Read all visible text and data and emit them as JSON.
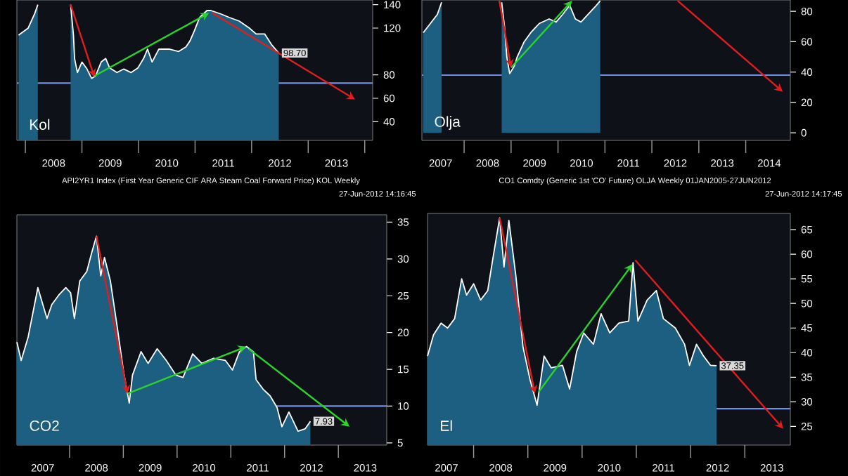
{
  "chart_data": [
    {
      "type": "area",
      "title": "Kol",
      "xlim": [
        2007.85,
        2014.14
      ],
      "ylim": [
        24,
        144
      ],
      "xticks": [
        {
          "value": 2008,
          "label": null
        },
        {
          "value": 2008.5,
          "label": "2008"
        },
        {
          "value": 2009,
          "label": null
        },
        {
          "value": 2009.5,
          "label": "2009"
        },
        {
          "value": 2010,
          "label": null
        },
        {
          "value": 2010.5,
          "label": "2010"
        },
        {
          "value": 2011,
          "label": null
        },
        {
          "value": 2011.5,
          "label": "2011"
        },
        {
          "value": 2012,
          "label": null
        },
        {
          "value": 2012.5,
          "label": "2012"
        },
        {
          "value": 2013,
          "label": null
        },
        {
          "value": 2013.5,
          "label": "2013"
        },
        {
          "value": 2014,
          "label": null
        }
      ],
      "yticks": [
        40,
        60,
        80,
        120,
        140
      ],
      "series": [
        {
          "color": "#1d5f80",
          "x": [
            2007.88,
            2008.05,
            2008.17,
            2008.22,
            2008.5,
            2008.8,
            2008.85,
            2008.87,
            2008.92,
            2009.0,
            2009.09,
            2009.17,
            2009.24,
            2009.34,
            2009.42,
            2009.49,
            2009.62,
            2009.74,
            2009.87,
            2009.99,
            2010.09,
            2010.16,
            2010.24,
            2010.36,
            2010.54,
            2010.71,
            2010.84,
            2010.91,
            2010.99,
            2011.08,
            2011.21,
            2011.28,
            2011.46,
            2011.61,
            2011.78,
            2011.96,
            2012.08,
            2012.23,
            2012.35,
            2012.48
          ],
          "values": [
            114,
            120,
            133,
            140,
            null,
            140,
            114,
            94,
            82,
            91,
            85,
            77,
            79,
            91,
            94,
            86,
            82,
            85,
            82,
            86,
            94,
            102,
            91,
            102,
            102,
            100,
            104,
            109,
            118,
            129,
            135,
            135,
            132,
            129,
            126,
            120,
            115,
            115,
            106,
            98.7
          ],
          "value_labels": [
            null,
            null,
            null,
            null,
            null,
            null,
            null,
            null,
            null,
            null,
            null,
            null,
            null,
            null,
            null,
            null,
            null,
            null,
            null,
            null,
            null,
            null,
            null,
            null,
            null,
            null,
            null,
            null,
            null,
            null,
            null,
            null,
            null,
            null,
            null,
            null,
            null,
            null,
            null,
            "98.70"
          ]
        }
      ],
      "ref_lines": [
        {
          "axis": "y",
          "value": 73,
          "color": "#6f8fe8"
        }
      ],
      "annotations": [
        "API2YR1 Index (First Year Generic CIF ARA Steam Coal Forward Price) KOL  Weekly",
        "27-Jun-2012 14:16:45"
      ]
    },
    {
      "type": "area",
      "title": "Olja",
      "xlim": [
        2007.1,
        2014.95
      ],
      "ylim": [
        -5,
        87.5
      ],
      "xticks": [
        {
          "value": 2007.5,
          "label": "2007"
        },
        {
          "value": 2008,
          "label": null
        },
        {
          "value": 2008.5,
          "label": "2008"
        },
        {
          "value": 2009,
          "label": null
        },
        {
          "value": 2009.5,
          "label": "2009"
        },
        {
          "value": 2010,
          "label": null
        },
        {
          "value": 2010.5,
          "label": "2010"
        },
        {
          "value": 2011,
          "label": null
        },
        {
          "value": 2011.5,
          "label": "2011"
        },
        {
          "value": 2012,
          "label": null
        },
        {
          "value": 2012.5,
          "label": "2012"
        },
        {
          "value": 2013,
          "label": null
        },
        {
          "value": 2013.5,
          "label": "2013"
        },
        {
          "value": 2014,
          "label": null
        },
        {
          "value": 2014.5,
          "label": "2014"
        }
      ],
      "yticks": [
        0,
        20,
        40,
        60,
        80
      ],
      "series": [
        {
          "color": "#1d5f80",
          "x": [
            2007.13,
            2007.43,
            2007.52,
            2008.2,
            2008.8,
            2008.86,
            2008.91,
            2008.97,
            2009.07,
            2009.13,
            2009.28,
            2009.42,
            2009.6,
            2009.81,
            2009.96,
            2010.1,
            2010.25,
            2010.37,
            2010.49,
            2010.61,
            2010.79,
            2010.9
          ],
          "values": [
            66,
            78,
            86,
            null,
            86,
            70,
            50,
            39,
            44,
            50,
            60,
            66,
            72,
            75,
            73,
            78,
            84,
            75,
            73,
            77,
            83,
            87
          ]
        }
      ],
      "ref_lines": [
        {
          "axis": "y",
          "value": 38,
          "color": "#6f8fe8"
        }
      ],
      "annotations": [
        "CO1 Comdty (Generic 1st 'CO' Future) OLJA  Weekly 01JAN2005-27JUN2012",
        "27-Jun-2012 14:17:45"
      ]
    },
    {
      "type": "area",
      "title": "CO2",
      "xlim": [
        2007.02,
        2013.9
      ],
      "ylim": [
        4.7,
        36
      ],
      "xticks": [
        {
          "value": 2007.5,
          "label": "2007"
        },
        {
          "value": 2008,
          "label": null
        },
        {
          "value": 2008.5,
          "label": "2008"
        },
        {
          "value": 2009,
          "label": null
        },
        {
          "value": 2009.5,
          "label": "2009"
        },
        {
          "value": 2010,
          "label": null
        },
        {
          "value": 2010.5,
          "label": "2010"
        },
        {
          "value": 2011,
          "label": null
        },
        {
          "value": 2011.5,
          "label": "2011"
        },
        {
          "value": 2012,
          "label": null
        },
        {
          "value": 2012.5,
          "label": "2012"
        },
        {
          "value": 2013,
          "label": null
        },
        {
          "value": 2013.5,
          "label": "2013"
        }
      ],
      "yticks": [
        5,
        10,
        15,
        20,
        25,
        30,
        35
      ],
      "series": [
        {
          "color": "#1d5f80",
          "x": [
            2007.02,
            2007.1,
            2007.23,
            2007.41,
            2007.58,
            2007.67,
            2007.8,
            2007.93,
            2008.02,
            2008.09,
            2008.19,
            2008.32,
            2008.41,
            2008.5,
            2008.58,
            2008.65,
            2008.76,
            2008.89,
            2009.0,
            2009.11,
            2009.17,
            2009.33,
            2009.46,
            2009.63,
            2009.8,
            2009.98,
            2010.11,
            2010.29,
            2010.46,
            2010.68,
            2010.9,
            2011.03,
            2011.16,
            2011.29,
            2011.42,
            2011.47,
            2011.6,
            2011.73,
            2011.86,
            2011.95,
            2012.08,
            2012.25,
            2012.38,
            2012.48
          ],
          "values": [
            18.7,
            16.2,
            19.4,
            26.1,
            21.9,
            23.8,
            25.1,
            26.1,
            25.4,
            21.9,
            27.0,
            28.3,
            30.8,
            33.1,
            27.7,
            30.2,
            27.0,
            20.6,
            14.9,
            10.4,
            14.2,
            17.4,
            15.8,
            17.8,
            16.2,
            14.2,
            13.9,
            17.1,
            15.8,
            16.5,
            16.2,
            14.9,
            17.4,
            18.1,
            17.4,
            13.6,
            12.3,
            11.4,
            9.8,
            7.2,
            9.2,
            6.6,
            6.9,
            7.93
          ],
          "value_labels": [
            null,
            null,
            null,
            null,
            null,
            null,
            null,
            null,
            null,
            null,
            null,
            null,
            null,
            null,
            null,
            null,
            null,
            null,
            null,
            null,
            null,
            null,
            null,
            null,
            null,
            null,
            null,
            null,
            null,
            null,
            null,
            null,
            null,
            null,
            null,
            null,
            null,
            null,
            null,
            null,
            null,
            null,
            null,
            "7.93"
          ]
        }
      ],
      "ref_lines": [
        {
          "axis": "y",
          "value": 10,
          "color": "#6f8fe8"
        }
      ]
    },
    {
      "type": "area",
      "title": "El",
      "xlim": [
        2007.15,
        2013.84
      ],
      "ylim": [
        21.2,
        68.3
      ],
      "xticks": [
        {
          "value": 2007.5,
          "label": "2007"
        },
        {
          "value": 2008,
          "label": null
        },
        {
          "value": 2008.5,
          "label": "2008"
        },
        {
          "value": 2009,
          "label": null
        },
        {
          "value": 2009.5,
          "label": "2009"
        },
        {
          "value": 2010,
          "label": null
        },
        {
          "value": 2010.5,
          "label": "2010"
        },
        {
          "value": 2011,
          "label": null
        },
        {
          "value": 2011.5,
          "label": "2011"
        },
        {
          "value": 2012,
          "label": null
        },
        {
          "value": 2012.5,
          "label": "2012"
        },
        {
          "value": 2013,
          "label": null
        },
        {
          "value": 2013.5,
          "label": "2013"
        }
      ],
      "yticks": [
        25,
        30,
        35,
        40,
        45,
        50,
        55,
        60,
        65
      ],
      "series": [
        {
          "color": "#1d5f80",
          "x": [
            2007.15,
            2007.26,
            2007.4,
            2007.52,
            2007.65,
            2007.78,
            2007.87,
            2008.0,
            2008.13,
            2008.26,
            2008.35,
            2008.48,
            2008.56,
            2008.65,
            2008.78,
            2008.91,
            2009.04,
            2009.17,
            2009.3,
            2009.43,
            2009.64,
            2009.77,
            2009.9,
            2010.03,
            2010.21,
            2010.35,
            2010.51,
            2010.68,
            2010.86,
            2010.94,
            2011.03,
            2011.2,
            2011.37,
            2011.5,
            2011.72,
            2011.89,
            2011.98,
            2012.11,
            2012.24,
            2012.37,
            2012.48
          ],
          "values": [
            39.3,
            43.6,
            46.0,
            45,
            46.9,
            55,
            51.7,
            54,
            50.7,
            52.6,
            58.8,
            67.4,
            57.4,
            66.9,
            55.5,
            41.2,
            34.5,
            29.3,
            39.3,
            36.9,
            37.4,
            32.6,
            40.2,
            44.0,
            41.7,
            47.9,
            44.0,
            46.0,
            46.4,
            58.3,
            46.4,
            50.7,
            52.6,
            46.9,
            45,
            41.7,
            37.4,
            41.7,
            39.3,
            37.4,
            37.35
          ],
          "value_labels": [
            null,
            null,
            null,
            null,
            null,
            null,
            null,
            null,
            null,
            null,
            null,
            null,
            null,
            null,
            null,
            null,
            null,
            null,
            null,
            null,
            null,
            null,
            null,
            null,
            null,
            null,
            null,
            null,
            null,
            null,
            null,
            null,
            null,
            null,
            null,
            null,
            null,
            null,
            null,
            null,
            "37.35"
          ]
        }
      ],
      "ref_lines": [
        {
          "axis": "y",
          "value": 28.6,
          "color": "#6f8fe8"
        }
      ]
    }
  ]
}
